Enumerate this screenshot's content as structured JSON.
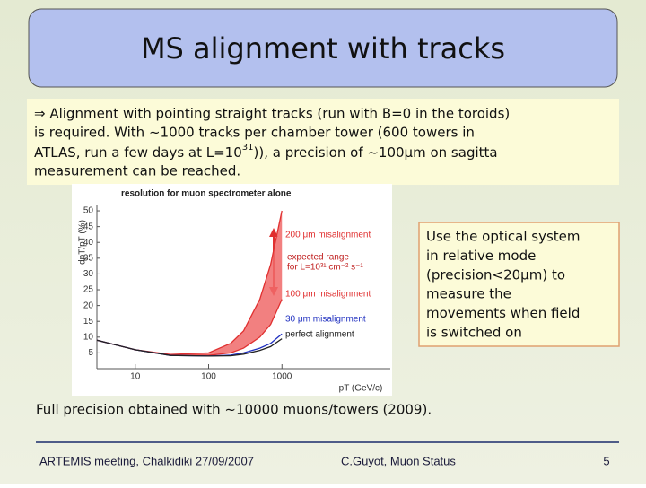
{
  "title": "MS alignment with tracks",
  "bullet": {
    "lines": [
      {
        "text": "⇒ Alignment with pointing straight tracks (run with B=0 in the toroids)"
      },
      {
        "text": "is required. With ~1000 tracks per chamber tower (600 towers in"
      },
      {
        "before": "ATLAS, run a few days at L=10",
        "sup": "31",
        "after": ")), a precision of ~100μm on sagitta"
      },
      {
        "text": "measurement can be reached."
      }
    ]
  },
  "figure": {
    "type": "line",
    "title": "resolution for muon spectrometer alone",
    "y_label": "dpT/pT (%)",
    "x_label": "pT (GeV/c)",
    "log_x": true,
    "xlim": [
      3,
      30000
    ],
    "ylim": [
      0,
      52
    ],
    "xticks": [
      10,
      100,
      1000
    ],
    "yticks": [
      5,
      10,
      15,
      20,
      25,
      30,
      35,
      40,
      45,
      50
    ],
    "x": [
      3,
      10,
      30,
      100,
      200,
      300,
      500,
      700,
      1000
    ],
    "series": [
      {
        "name": "200 μm misalignment",
        "color": "#e03030",
        "values": [
          9,
          6,
          4.5,
          5,
          8,
          12,
          22,
          33,
          50
        ]
      },
      {
        "name": "100 μm misalignment",
        "color": "#e03030",
        "values": [
          9,
          6,
          4.3,
          4.2,
          5,
          6.5,
          10,
          14,
          22
        ]
      },
      {
        "name": "30 μm misalignment",
        "color": "#2030c0",
        "values": [
          9,
          6,
          4.2,
          4,
          4.3,
          5,
          6.5,
          8,
          11
        ]
      },
      {
        "name": "perfect alignment",
        "color": "#222222",
        "values": [
          9,
          6,
          4.2,
          4,
          4.1,
          4.6,
          5.8,
          7,
          9.5
        ]
      }
    ],
    "band_label": [
      "expected range",
      "for L=10³¹ cm⁻² s⁻¹"
    ]
  },
  "callout": {
    "lines": [
      "Use the optical system",
      "in relative mode",
      "(precision<20μm) to",
      "measure the",
      "movements when field",
      "is switched on"
    ]
  },
  "conclusion": "Full precision obtained with ~10000 muons/towers (2009).",
  "footer": {
    "left": "ARTEMIS meeting,  Chalkidiki 27/09/2007",
    "center": "C.Guyot,   Muon Status",
    "page": "5"
  }
}
